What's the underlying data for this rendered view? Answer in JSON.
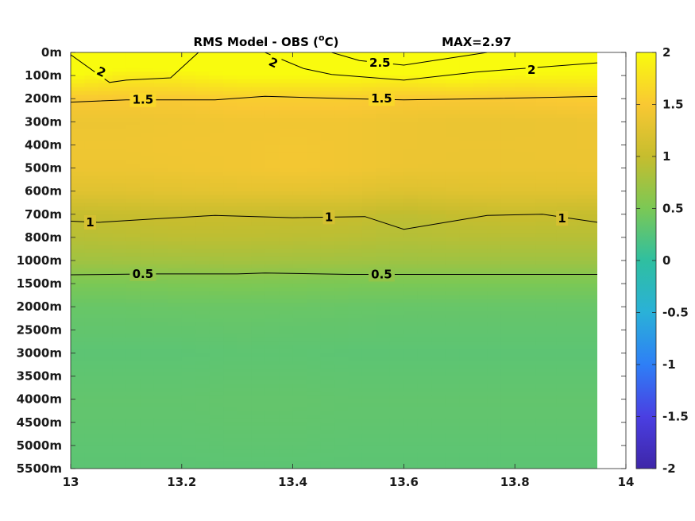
{
  "chart_data": {
    "type": "heatmap",
    "title": "RMS Model - OBS (",
    "title_unit": "o",
    "title_unit_suffix": "C)",
    "max_label": "MAX=2.97",
    "x_ticks": [
      "13",
      "13.2",
      "13.4",
      "13.6",
      "13.8",
      "14"
    ],
    "x_values": [
      13,
      13.2,
      13.4,
      13.6,
      13.8,
      14
    ],
    "xlim": [
      13,
      14
    ],
    "x_data_end": 13.95,
    "y_ticks": [
      "0m",
      "100m",
      "200m",
      "300m",
      "400m",
      "500m",
      "600m",
      "700m",
      "800m",
      "1000m",
      "1500m",
      "2000m",
      "2500m",
      "3000m",
      "3500m",
      "4000m",
      "4500m",
      "5000m",
      "5500m"
    ],
    "y_depths": [
      0,
      100,
      200,
      300,
      400,
      500,
      600,
      700,
      800,
      1000,
      1500,
      2000,
      2500,
      3000,
      3500,
      4000,
      4500,
      5000,
      5500
    ],
    "colorbar_ticks": [
      "2",
      "1.5",
      "1",
      "0.5",
      "0",
      "-0.5",
      "-1",
      "-1.5",
      "-2"
    ],
    "colorbar_values": [
      2,
      1.5,
      1,
      0.5,
      0,
      -0.5,
      -1,
      -1.5,
      -2
    ],
    "clim": [
      -2,
      2
    ],
    "colormap": [
      "#3e26a8",
      "#4a3fe2",
      "#2e7ff6",
      "#2ab1d8",
      "#2fbfa0",
      "#7bc855",
      "#c6bd2e",
      "#f9c833",
      "#f9fb0e"
    ],
    "x_columns": [
      13,
      13.1,
      13.2,
      13.3,
      13.4,
      13.5,
      13.6,
      13.7,
      13.8,
      13.95
    ],
    "rms_values": [
      [
        2.4,
        2.3,
        2.3,
        2.2,
        2.1,
        2.4,
        2.6,
        2.4,
        2.2,
        2.1
      ],
      [
        2.0,
        1.85,
        1.9,
        2.0,
        2.0,
        2.0,
        1.95,
        2.05,
        1.95,
        1.95
      ],
      [
        1.5,
        1.5,
        1.5,
        1.55,
        1.55,
        1.55,
        1.5,
        1.5,
        1.5,
        1.55
      ],
      [
        1.38,
        1.38,
        1.4,
        1.42,
        1.42,
        1.42,
        1.38,
        1.36,
        1.36,
        1.38
      ],
      [
        1.4,
        1.4,
        1.42,
        1.42,
        1.44,
        1.42,
        1.38,
        1.37,
        1.37,
        1.38
      ],
      [
        1.38,
        1.38,
        1.4,
        1.42,
        1.45,
        1.42,
        1.37,
        1.36,
        1.36,
        1.37
      ],
      [
        1.25,
        1.26,
        1.28,
        1.3,
        1.3,
        1.28,
        1.22,
        1.25,
        1.26,
        1.25
      ],
      [
        1.0,
        1.02,
        1.04,
        1.03,
        1.02,
        1.02,
        0.95,
        1.0,
        1.03,
        1.0
      ],
      [
        0.9,
        0.92,
        0.94,
        0.94,
        0.93,
        0.92,
        0.88,
        0.9,
        0.9,
        0.9
      ],
      [
        0.75,
        0.76,
        0.77,
        0.78,
        0.77,
        0.76,
        0.74,
        0.74,
        0.74,
        0.74
      ],
      [
        0.5,
        0.5,
        0.51,
        0.52,
        0.51,
        0.5,
        0.5,
        0.5,
        0.5,
        0.5
      ],
      [
        0.38,
        0.38,
        0.39,
        0.39,
        0.39,
        0.38,
        0.37,
        0.37,
        0.37,
        0.37
      ],
      [
        0.34,
        0.34,
        0.34,
        0.35,
        0.34,
        0.34,
        0.33,
        0.33,
        0.33,
        0.33
      ],
      [
        0.3,
        0.3,
        0.3,
        0.31,
        0.31,
        0.3,
        0.3,
        0.3,
        0.3,
        0.3
      ],
      [
        0.32,
        0.32,
        0.32,
        0.33,
        0.33,
        0.32,
        0.32,
        0.32,
        0.32,
        0.32
      ],
      [
        0.34,
        0.34,
        0.34,
        0.35,
        0.35,
        0.34,
        0.34,
        0.34,
        0.34,
        0.34
      ],
      [
        0.33,
        0.33,
        0.33,
        0.34,
        0.34,
        0.33,
        0.33,
        0.33,
        0.33,
        0.33
      ],
      [
        0.31,
        0.31,
        0.31,
        0.32,
        0.32,
        0.31,
        0.31,
        0.31,
        0.31,
        0.31
      ],
      [
        0.3,
        0.3,
        0.3,
        0.3,
        0.3,
        0.3,
        0.3,
        0.3,
        0.3,
        0.3
      ]
    ],
    "contours": [
      {
        "level": "2",
        "points": [
          [
            13.0,
            10
          ],
          [
            13.07,
            130
          ],
          [
            13.1,
            120
          ],
          [
            13.18,
            110
          ],
          [
            13.23,
            0
          ]
        ],
        "labels": [
          {
            "x": 13.055,
            "d": 85,
            "text": "2",
            "rot": 25
          }
        ]
      },
      {
        "level": "2",
        "points": [
          [
            13.35,
            0
          ],
          [
            13.42,
            70
          ],
          [
            13.47,
            95
          ],
          [
            13.6,
            120
          ],
          [
            13.73,
            85
          ],
          [
            13.95,
            45
          ]
        ],
        "labels": [
          {
            "x": 13.365,
            "d": 45,
            "text": "2",
            "rot": 25
          },
          {
            "x": 13.83,
            "d": 75,
            "text": "2",
            "rot": 0
          }
        ]
      },
      {
        "level": "2.5",
        "points": [
          [
            13.47,
            0
          ],
          [
            13.52,
            35
          ],
          [
            13.6,
            55
          ],
          [
            13.75,
            0
          ]
        ],
        "labels": [
          {
            "x": 13.557,
            "d": 45,
            "text": "2.5",
            "rot": 0
          }
        ]
      },
      {
        "level": "1.5",
        "points": [
          [
            13.0,
            215
          ],
          [
            13.1,
            205
          ],
          [
            13.26,
            205
          ],
          [
            13.35,
            190
          ],
          [
            13.5,
            200
          ],
          [
            13.6,
            205
          ],
          [
            13.75,
            200
          ],
          [
            13.95,
            190
          ]
        ],
        "labels": [
          {
            "x": 13.13,
            "d": 205,
            "text": "1.5",
            "rot": 0
          },
          {
            "x": 13.56,
            "d": 200,
            "text": "1.5",
            "rot": 0
          }
        ]
      },
      {
        "level": "1",
        "points": [
          [
            13.0,
            730
          ],
          [
            13.05,
            735
          ],
          [
            13.15,
            720
          ],
          [
            13.26,
            705
          ],
          [
            13.4,
            715
          ],
          [
            13.53,
            710
          ],
          [
            13.6,
            765
          ],
          [
            13.75,
            705
          ],
          [
            13.85,
            700
          ],
          [
            13.95,
            735
          ]
        ],
        "labels": [
          {
            "x": 13.035,
            "d": 735,
            "text": "1",
            "rot": 0
          },
          {
            "x": 13.465,
            "d": 712,
            "text": "1",
            "rot": 0
          },
          {
            "x": 13.885,
            "d": 718,
            "text": "1",
            "rot": 0
          }
        ]
      },
      {
        "level": "0.5",
        "points": [
          [
            13.0,
            1310
          ],
          [
            13.15,
            1290
          ],
          [
            13.3,
            1290
          ],
          [
            13.35,
            1270
          ],
          [
            13.5,
            1300
          ],
          [
            13.65,
            1300
          ],
          [
            13.95,
            1300
          ]
        ],
        "labels": [
          {
            "x": 13.13,
            "d": 1290,
            "text": "0.5",
            "rot": 0
          },
          {
            "x": 13.56,
            "d": 1300,
            "text": "0.5",
            "rot": 0
          }
        ]
      }
    ]
  }
}
